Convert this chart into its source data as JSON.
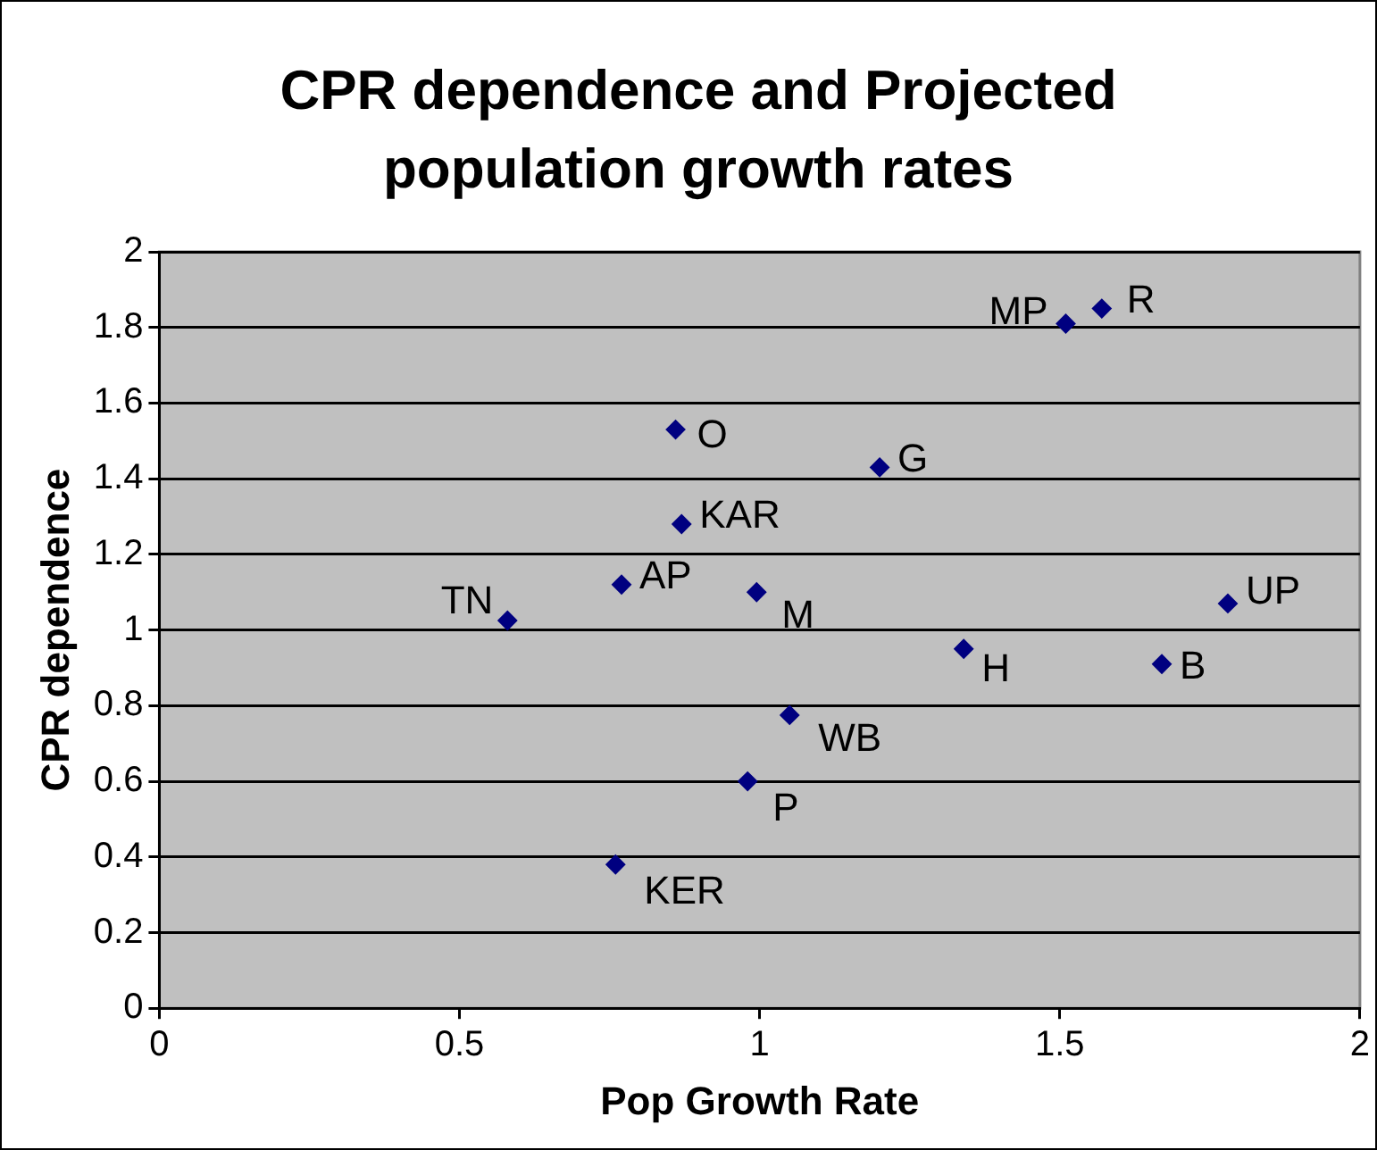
{
  "chart_data": {
    "type": "scatter",
    "title": "CPR dependence and Projected population growth rates",
    "xlabel": "Pop Growth Rate",
    "ylabel": "CPR dependence",
    "x": [
      0.86,
      0.87,
      0.77,
      0.995,
      0.58,
      1.05,
      0.98,
      0.76,
      1.2,
      1.51,
      1.57,
      1.78,
      1.34,
      1.67
    ],
    "series": [
      {
        "color": "#000080",
        "values": [
          1.53,
          1.28,
          1.12,
          1.1,
          1.025,
          0.775,
          0.6,
          0.38,
          1.43,
          1.81,
          1.85,
          1.07,
          0.95,
          0.91
        ]
      }
    ],
    "xlim": [
      0,
      2
    ],
    "xticks": [
      0,
      0.5,
      1,
      1.5,
      2
    ],
    "ylim": [
      0,
      2
    ],
    "yticks": [
      0,
      0.2,
      0.4,
      0.6,
      0.8,
      1,
      1.2,
      1.4,
      1.6,
      1.8,
      2
    ],
    "grid": "y",
    "legend": false,
    "marker": "diamond",
    "annotations": [
      {
        "text": "O",
        "x": 0.86,
        "y": 1.53
      },
      {
        "text": "KAR",
        "x": 0.87,
        "y": 1.28
      },
      {
        "text": "AP",
        "x": 0.77,
        "y": 1.12
      },
      {
        "text": "M",
        "x": 0.995,
        "y": 1.1
      },
      {
        "text": "TN",
        "x": 0.58,
        "y": 1.025
      },
      {
        "text": "WB",
        "x": 1.05,
        "y": 0.775
      },
      {
        "text": "P",
        "x": 0.98,
        "y": 0.6
      },
      {
        "text": "KER",
        "x": 0.76,
        "y": 0.38
      },
      {
        "text": "G",
        "x": 1.2,
        "y": 1.43
      },
      {
        "text": "MP",
        "x": 1.51,
        "y": 1.81
      },
      {
        "text": "R",
        "x": 1.57,
        "y": 1.85
      },
      {
        "text": "UP",
        "x": 1.78,
        "y": 1.07
      },
      {
        "text": "H",
        "x": 1.34,
        "y": 0.95
      },
      {
        "text": "B",
        "x": 1.67,
        "y": 0.91
      }
    ]
  }
}
